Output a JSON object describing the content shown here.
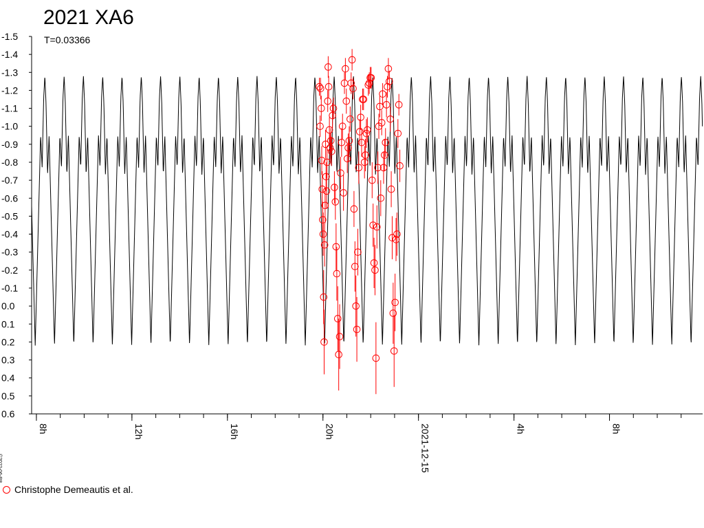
{
  "chart_data": {
    "type": "scatter",
    "title": "2021 XA6",
    "subtitle": "T=0.03366",
    "xlabel": "",
    "ylabel": "",
    "x_range_hours": [
      7.8,
      35.9
    ],
    "y_range": [
      -1.5,
      0.6
    ],
    "y_inverted": true,
    "grid": false,
    "legend_placement": "bottom-left",
    "y_ticks": [
      "-1.5",
      "-1.4",
      "-1.3",
      "-1.2",
      "-1.1",
      "-1.0",
      "-0.9",
      "-0.8",
      "-0.7",
      "-0.6",
      "-0.5",
      "-0.4",
      "-0.3",
      "-0.2",
      "-0.1",
      "0.0",
      "0.1",
      "0.2",
      "0.3",
      "0.4",
      "0.5",
      "0.6"
    ],
    "x_ticks": [
      {
        "hour": 8,
        "label": "8h"
      },
      {
        "hour": 12,
        "label": "12h"
      },
      {
        "hour": 16,
        "label": "16h"
      },
      {
        "hour": 20,
        "label": "20h"
      },
      {
        "hour": 24,
        "label": "2021-12-15"
      },
      {
        "hour": 28,
        "label": "4h"
      },
      {
        "hour": 32,
        "label": "8h"
      }
    ],
    "model": {
      "name": "",
      "color": "#000000",
      "period_hours": 0.80784,
      "min": -1.28,
      "max": 0.22,
      "secondary_peak": -0.95
    },
    "series": [
      {
        "name": "Christophe Demeautis et al.",
        "color": "#ff0000",
        "marker": "open-circle",
        "points": [
          [
            19.85,
            -1.22,
            0.05
          ],
          [
            19.88,
            -1.0,
            0.06
          ],
          [
            19.9,
            -1.21,
            0.06
          ],
          [
            19.93,
            -1.1,
            0.07
          ],
          [
            19.95,
            -0.81,
            0.08
          ],
          [
            19.97,
            -0.65,
            0.1
          ],
          [
            19.99,
            -0.48,
            0.1
          ],
          [
            20.01,
            -0.4,
            0.12
          ],
          [
            20.03,
            -0.05,
            0.15
          ],
          [
            20.05,
            0.2,
            0.18
          ],
          [
            20.07,
            -0.34,
            0.12
          ],
          [
            20.09,
            -0.56,
            0.1
          ],
          [
            20.11,
            -0.9,
            0.08
          ],
          [
            20.13,
            -0.72,
            0.08
          ],
          [
            20.15,
            -0.64,
            0.1
          ],
          [
            20.17,
            -0.8,
            0.09
          ],
          [
            20.2,
            -1.14,
            0.06
          ],
          [
            20.22,
            -1.33,
            0.06
          ],
          [
            20.24,
            -1.22,
            0.06
          ],
          [
            20.27,
            -0.98,
            0.07
          ],
          [
            20.3,
            -0.88,
            0.08
          ],
          [
            20.33,
            -0.92,
            0.07
          ],
          [
            20.36,
            -0.86,
            0.08
          ],
          [
            20.4,
            -1.06,
            0.07
          ],
          [
            20.44,
            -1.1,
            0.06
          ],
          [
            20.48,
            -0.66,
            0.09
          ],
          [
            20.52,
            -0.58,
            0.1
          ],
          [
            20.55,
            -0.33,
            0.13
          ],
          [
            20.58,
            -0.18,
            0.15
          ],
          [
            20.62,
            0.07,
            0.18
          ],
          [
            20.66,
            0.27,
            0.2
          ],
          [
            20.7,
            0.17,
            0.18
          ],
          [
            20.74,
            -0.74,
            0.09
          ],
          [
            20.78,
            -0.91,
            0.08
          ],
          [
            20.82,
            -1.0,
            0.07
          ],
          [
            20.86,
            -0.63,
            0.1
          ],
          [
            20.9,
            -1.24,
            0.06
          ],
          [
            20.94,
            -1.32,
            0.06
          ],
          [
            20.98,
            -1.14,
            0.07
          ],
          [
            21.02,
            -0.82,
            0.08
          ],
          [
            21.06,
            -0.88,
            0.08
          ],
          [
            21.1,
            -0.92,
            0.08
          ],
          [
            21.14,
            -1.04,
            0.07
          ],
          [
            21.18,
            -1.24,
            0.06
          ],
          [
            21.22,
            -1.37,
            0.06
          ],
          [
            21.26,
            -1.21,
            0.06
          ],
          [
            21.3,
            -0.54,
            0.1
          ],
          [
            21.34,
            -0.22,
            0.14
          ],
          [
            21.38,
            0.0,
            0.17
          ],
          [
            21.42,
            0.13,
            0.18
          ],
          [
            21.46,
            -0.3,
            0.13
          ],
          [
            21.5,
            -0.77,
            0.09
          ],
          [
            21.54,
            -0.97,
            0.07
          ],
          [
            21.58,
            -1.05,
            0.07
          ],
          [
            21.62,
            -0.91,
            0.08
          ],
          [
            21.66,
            -1.15,
            0.06
          ],
          [
            21.7,
            -1.15,
            0.06
          ],
          [
            21.74,
            -0.8,
            0.09
          ],
          [
            21.78,
            -0.84,
            0.09
          ],
          [
            21.82,
            -0.96,
            0.08
          ],
          [
            21.86,
            -0.98,
            0.07
          ],
          [
            21.9,
            -1.23,
            0.06
          ],
          [
            21.94,
            -1.24,
            0.06
          ],
          [
            21.98,
            -1.27,
            0.06
          ],
          [
            22.02,
            -1.27,
            0.06
          ],
          [
            22.06,
            -0.7,
            0.1
          ],
          [
            22.1,
            -0.45,
            0.12
          ],
          [
            22.14,
            -0.24,
            0.14
          ],
          [
            22.18,
            -0.2,
            0.14
          ],
          [
            22.22,
            0.29,
            0.2
          ],
          [
            22.26,
            -0.44,
            0.12
          ],
          [
            22.3,
            -0.77,
            0.09
          ],
          [
            22.34,
            -1.0,
            0.07
          ],
          [
            22.38,
            -1.11,
            0.06
          ],
          [
            22.42,
            -0.6,
            0.1
          ],
          [
            22.46,
            -1.02,
            0.07
          ],
          [
            22.5,
            -1.18,
            0.06
          ],
          [
            22.54,
            -0.77,
            0.09
          ],
          [
            22.58,
            -0.84,
            0.09
          ],
          [
            22.62,
            -0.91,
            0.08
          ],
          [
            22.66,
            -1.12,
            0.07
          ],
          [
            22.7,
            -1.22,
            0.06
          ],
          [
            22.74,
            -1.32,
            0.06
          ],
          [
            22.78,
            -1.25,
            0.06
          ],
          [
            22.82,
            -1.04,
            0.07
          ],
          [
            22.86,
            -0.65,
            0.1
          ],
          [
            22.9,
            -0.38,
            0.12
          ],
          [
            22.94,
            0.04,
            0.17
          ],
          [
            22.98,
            0.25,
            0.2
          ],
          [
            23.02,
            -0.02,
            0.16
          ],
          [
            23.06,
            -0.37,
            0.12
          ],
          [
            23.1,
            -0.4,
            0.12
          ],
          [
            23.14,
            -0.96,
            0.08
          ],
          [
            23.18,
            -1.12,
            0.06
          ],
          [
            23.22,
            -0.78,
            0.09
          ]
        ]
      }
    ]
  }
}
